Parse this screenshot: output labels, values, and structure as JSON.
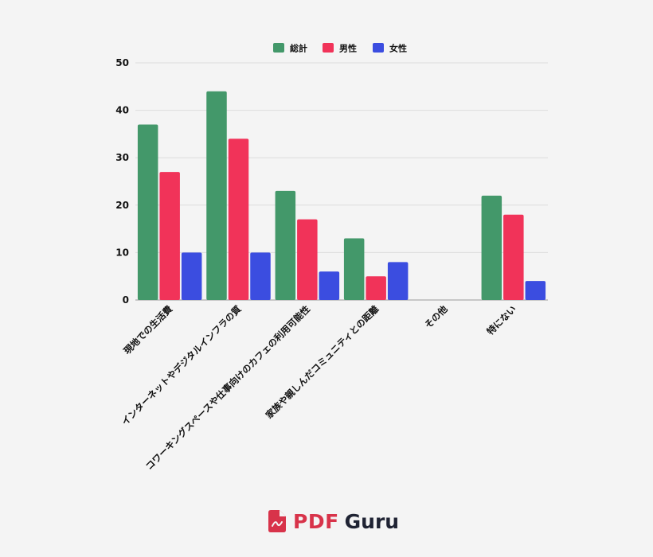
{
  "chart_data": {
    "type": "bar",
    "categories": [
      "現地での生活費",
      "インターネットやデジタルインフラの質",
      "コワーキングスペースや仕事向けのカフェの利用可能性",
      "家族や親しんだコミュニティとの距離",
      "その他",
      "特にない"
    ],
    "series": [
      {
        "name": "総計",
        "color": "#43986a",
        "values": [
          37,
          44,
          23,
          13,
          0,
          22
        ]
      },
      {
        "name": "男性",
        "color": "#f13359",
        "values": [
          27,
          34,
          17,
          5,
          0,
          18
        ]
      },
      {
        "name": "女性",
        "color": "#3b4de0",
        "values": [
          10,
          10,
          6,
          8,
          0,
          4
        ]
      }
    ],
    "ylim": [
      0,
      50
    ],
    "yticks": [
      0,
      10,
      20,
      30,
      40,
      50
    ],
    "grid": true,
    "legend_position": "top-center",
    "title": "",
    "xlabel": "",
    "ylabel": ""
  },
  "brand": {
    "pdf": "PDF",
    "guru": "Guru",
    "icon": "pdf-file-icon",
    "color": "#d8334a"
  }
}
